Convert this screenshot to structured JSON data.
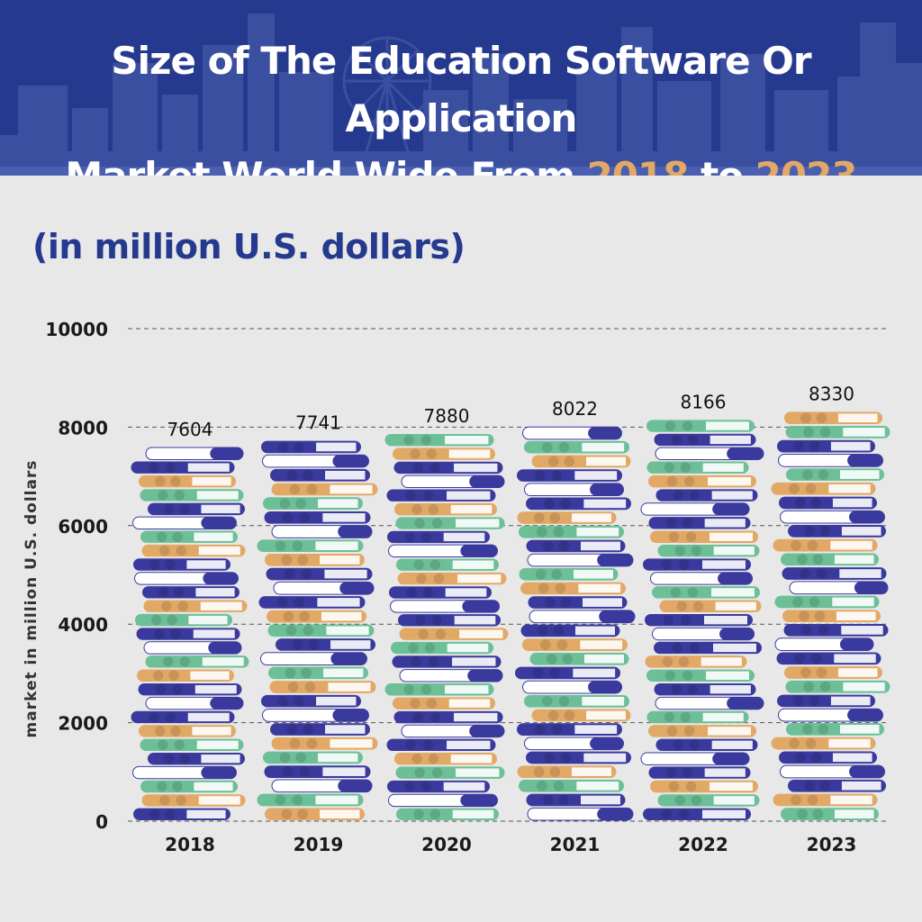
{
  "header": {
    "title_line1": "Size of The Education Software Or Application",
    "title_line2_prefix": "Market World Wide From ",
    "title_year_start": "2018",
    "title_mid": " to ",
    "title_year_end": "2023",
    "bg_color": "#253a8e",
    "highlight_color": "#e2a865"
  },
  "subtitle": "(in million U.S. dollars)",
  "chart_data": {
    "type": "bar",
    "categories": [
      "2018",
      "2019",
      "2020",
      "2021",
      "2022",
      "2023"
    ],
    "values": [
      7604,
      7741,
      7880,
      8022,
      8166,
      8330
    ],
    "ylabel": "market in million U.S. dollars",
    "ylim": [
      0,
      10000
    ],
    "yticks": [
      0,
      2000,
      4000,
      6000,
      8000,
      10000
    ],
    "ytick_labels": [
      "0",
      "2000",
      "4000",
      "6000",
      "8000",
      "10000"
    ],
    "grid": true,
    "bar_style": "stacked-books",
    "book_colors": [
      "#3a3a9e",
      "#e2a865",
      "#6cbf96",
      "#ffffff"
    ]
  }
}
